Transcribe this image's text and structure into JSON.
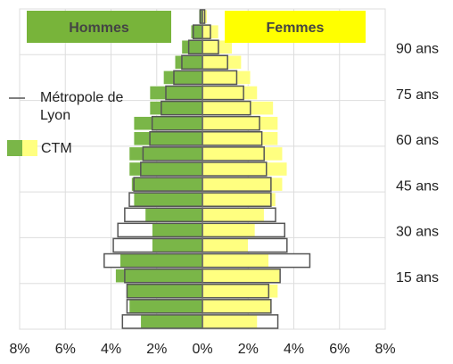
{
  "chart_data": {
    "type": "pyramid",
    "sides": [
      {
        "name": "Hommes",
        "color": "#78b43a"
      },
      {
        "name": "Femmes",
        "color": "#ffff00"
      }
    ],
    "categories": [
      null,
      null,
      null,
      null,
      null,
      null,
      null,
      null,
      null,
      null,
      null,
      null,
      null,
      null,
      null,
      null,
      null,
      null,
      null,
      null,
      null
    ],
    "series": [
      {
        "name": "Métropole de Lyon",
        "style": "outline",
        "color": "#555555",
        "men": [
          3.5,
          3.3,
          3.3,
          3.4,
          4.3,
          3.9,
          3.7,
          3.4,
          3.2,
          3.0,
          2.7,
          2.6,
          2.3,
          2.2,
          1.8,
          1.6,
          1.25,
          0.9,
          0.6,
          0.4,
          0.1
        ],
        "women": [
          3.3,
          3.0,
          2.9,
          3.4,
          4.7,
          3.7,
          3.6,
          3.2,
          3.0,
          3.0,
          2.8,
          2.7,
          2.6,
          2.5,
          2.1,
          1.8,
          1.5,
          1.1,
          0.7,
          0.35,
          0.1
        ]
      },
      {
        "name": "CTM",
        "style": "fill",
        "colors": [
          "#7ab648",
          "#ffff80"
        ],
        "men": [
          2.7,
          3.2,
          3.3,
          3.8,
          3.6,
          2.2,
          2.2,
          2.5,
          3.0,
          3.1,
          3.2,
          3.2,
          3.0,
          3.0,
          2.3,
          2.3,
          1.7,
          1.2,
          0.9,
          0.5,
          0.15
        ],
        "women": [
          2.4,
          3.0,
          3.3,
          3.4,
          2.9,
          2.0,
          2.3,
          2.7,
          3.2,
          3.5,
          3.7,
          3.5,
          3.3,
          3.3,
          3.1,
          2.4,
          2.1,
          1.7,
          1.3,
          0.7,
          0.2
        ]
      }
    ],
    "xlim": [
      -8,
      8
    ],
    "xticks": [
      {
        "value": -8,
        "label": "8%"
      },
      {
        "value": -6,
        "label": "6%"
      },
      {
        "value": -4,
        "label": "4%"
      },
      {
        "value": -2,
        "label": "2%"
      },
      {
        "value": 0,
        "label": "0%"
      },
      {
        "value": 2,
        "label": "2%"
      },
      {
        "value": 4,
        "label": "4%"
      },
      {
        "value": 6,
        "label": "6%"
      },
      {
        "value": 8,
        "label": "8%"
      }
    ],
    "ylim": [
      0,
      105
    ],
    "yticks": [
      {
        "value": 15,
        "label": "15 ans"
      },
      {
        "value": 30,
        "label": "30 ans"
      },
      {
        "value": 45,
        "label": "45 ans"
      },
      {
        "value": 60,
        "label": "60 ans"
      },
      {
        "value": 75,
        "label": "75 ans"
      },
      {
        "value": 90,
        "label": "90 ans"
      }
    ],
    "grid": true
  }
}
